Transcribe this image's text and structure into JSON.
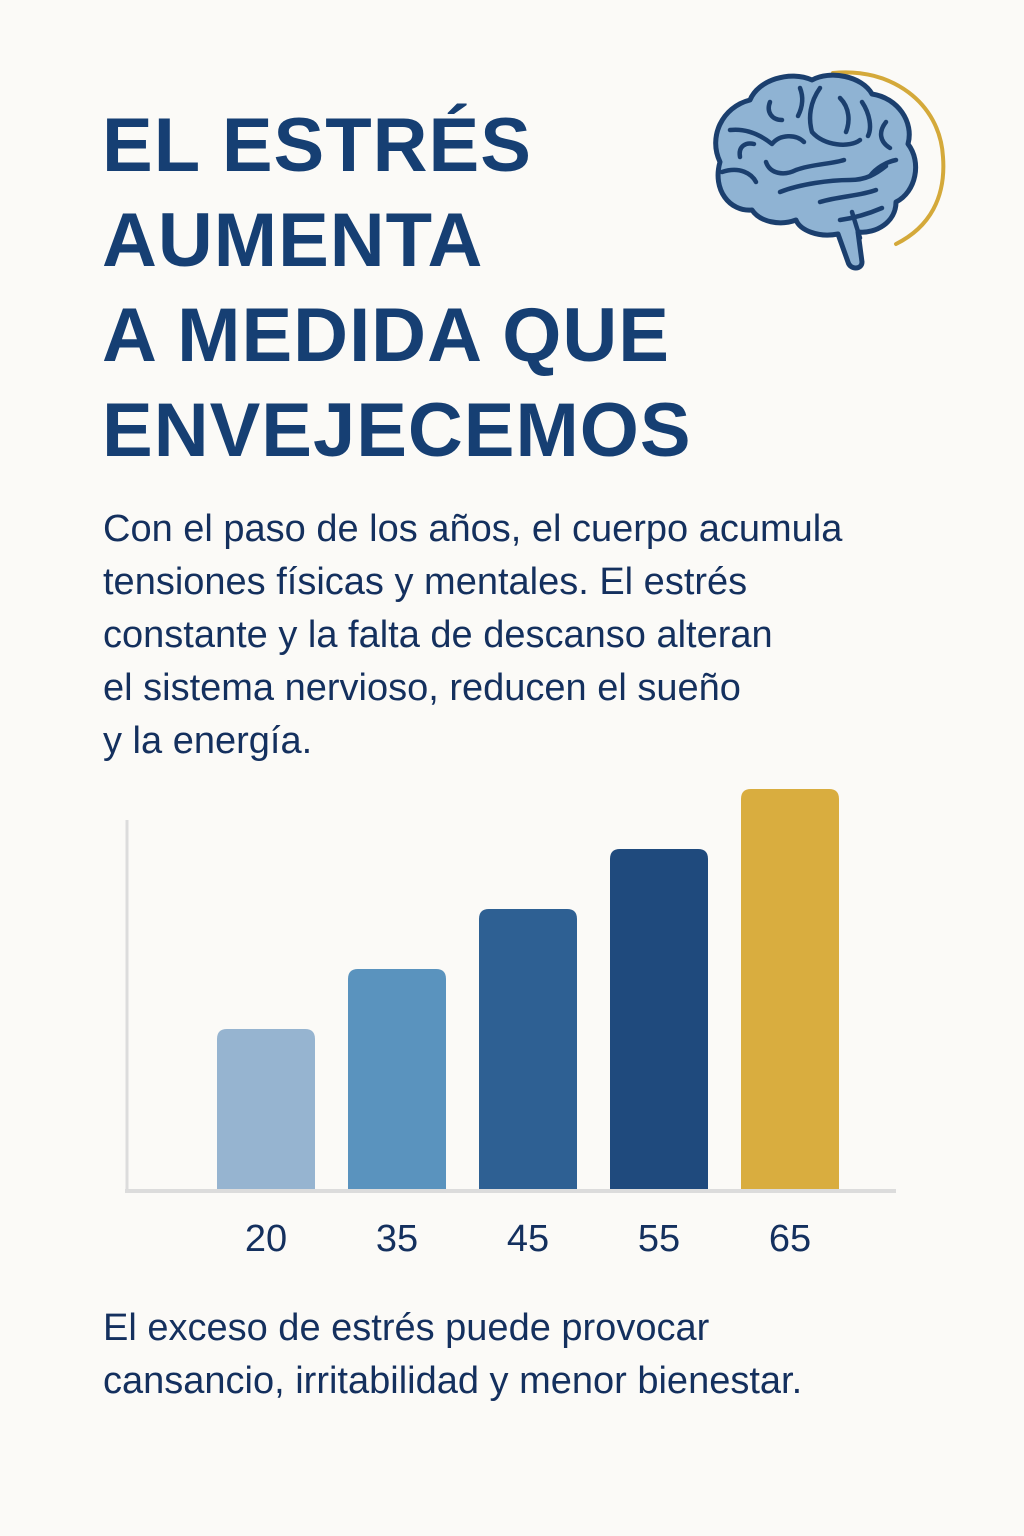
{
  "header": {
    "title_lines": [
      "EL ESTRÉS",
      "AUMENTA",
      "A MEDIDA QUE",
      "ENVEJECEMOS"
    ],
    "icon": "brain-icon"
  },
  "intro": {
    "lines": [
      "Con el paso de los años, el cuerpo acumula",
      "tensiones físicas y mentales. El estrés",
      "constante y la falta de descanso alteran",
      "el sistema nervioso, reducen el sueño",
      "y la energía."
    ]
  },
  "chart_data": {
    "type": "bar",
    "title": "",
    "xlabel": "",
    "ylabel": "",
    "categories": [
      "20",
      "35",
      "45",
      "55",
      "65"
    ],
    "values": [
      40,
      55,
      70,
      85,
      100
    ],
    "value_note": "relative stress level (no numeric y-axis shown)",
    "ylim": [
      0,
      100
    ],
    "grid": false,
    "legend": "none",
    "colors": [
      "#96b4d0",
      "#5a93be",
      "#2e6093",
      "#1f4a7d",
      "#d9ad3f"
    ]
  },
  "outro": {
    "lines": [
      "El exceso de estrés puede provocar",
      "cansancio, irritabilidad y menor bienestar."
    ]
  },
  "colors": {
    "background": "#fbfaf7",
    "title": "#163f73",
    "body_text": "#14305e",
    "accent": "#d9ad3f",
    "brain_fill": "#8fb3d3",
    "brain_outline": "#1b3f6e"
  }
}
